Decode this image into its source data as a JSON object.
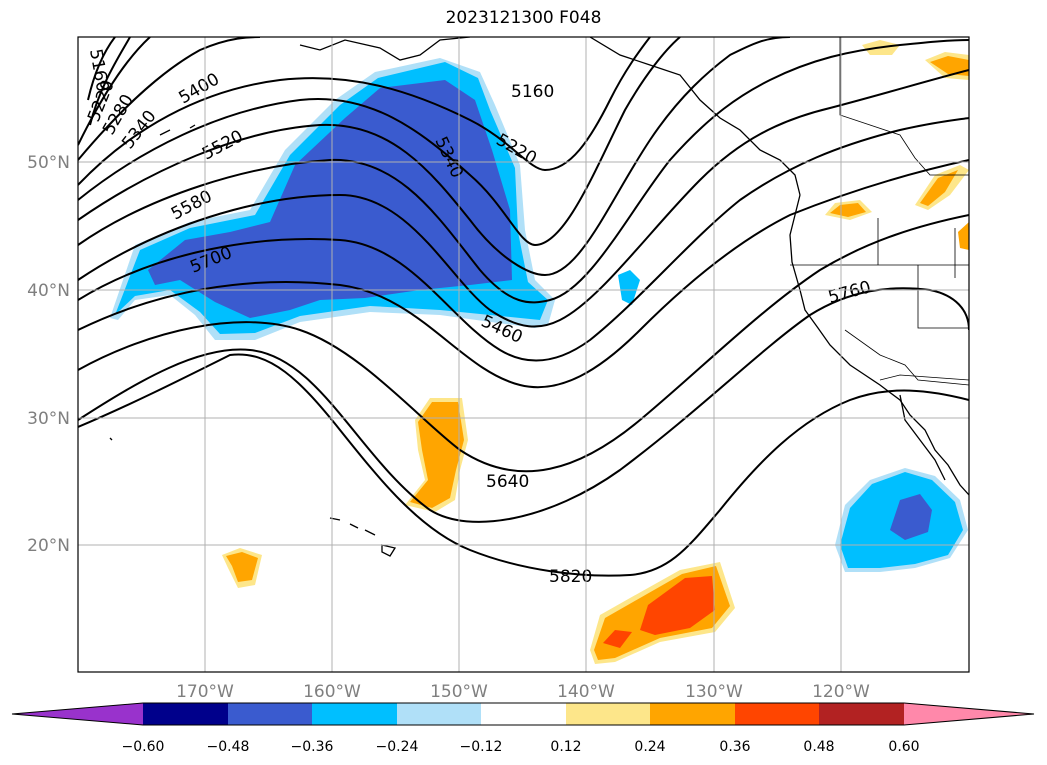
{
  "title": "2023121300 F048",
  "map": {
    "lat_labels": [
      "50°N",
      "40°N",
      "30°N",
      "20°N"
    ],
    "lon_labels": [
      "170°W",
      "160°W",
      "150°W",
      "140°W",
      "130°W",
      "120°W"
    ],
    "contour_labels": [
      "5160",
      "5220",
      "5280",
      "5340",
      "5400",
      "5520",
      "5580",
      "5700",
      "5160",
      "5220",
      "5340",
      "5460",
      "5640",
      "5820",
      "5760"
    ],
    "contour_color": "#000000",
    "gridlines": true,
    "fill_colors": {
      "dark_blue": "#3a5bcf",
      "light_blue": "#00bfff",
      "pale_blue": "#b0e0f8",
      "pale_yellow": "#fde68a",
      "orange": "#ffa500",
      "red_orange": "#ff4500"
    }
  },
  "colorbar": {
    "colors": [
      "#9932cc",
      "#00008b",
      "#3a5bcf",
      "#00bfff",
      "#b0e0f8",
      "#ffffff",
      "#fde68a",
      "#ffa500",
      "#ff4500",
      "#b22222",
      "#ff88aa",
      "#ff88aa"
    ],
    "ticks": [
      "−0.60",
      "−0.48",
      "−0.36",
      "−0.24",
      "−0.12",
      "0.12",
      "0.24",
      "0.36",
      "0.48",
      "0.60"
    ]
  }
}
